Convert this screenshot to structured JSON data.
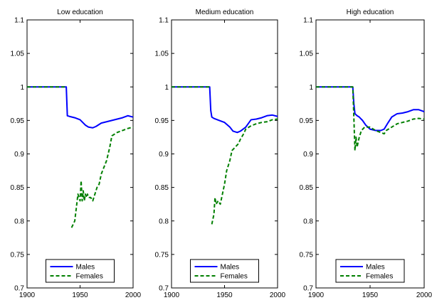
{
  "chart_data": [
    {
      "type": "line",
      "title": "Low education",
      "xlabel": "",
      "ylabel": "",
      "xlim": [
        1900,
        2000
      ],
      "ylim": [
        0.7,
        1.1
      ],
      "xticks": [
        1900,
        1950,
        2000
      ],
      "yticks": [
        0.7,
        0.75,
        0.8,
        0.85,
        0.9,
        0.95,
        1,
        1.05,
        1.1
      ],
      "xtick_labels": [
        "1900",
        "1950",
        "2000"
      ],
      "ytick_labels": [
        "0.7",
        "0.75",
        "0.8",
        "0.85",
        "0.9",
        "0.95",
        "1",
        "1.05",
        "1.1"
      ],
      "grid": false,
      "legend_position": "bottom-center",
      "series": [
        {
          "name": "Males",
          "color": "#0000ff",
          "style": "solid",
          "x": [
            1900,
            1937,
            1938,
            1940,
            1945,
            1950,
            1955,
            1958,
            1962,
            1965,
            1970,
            1975,
            1980,
            1985,
            1990,
            1995,
            2000
          ],
          "y": [
            1,
            1,
            0.957,
            0.956,
            0.954,
            0.951,
            0.943,
            0.94,
            0.939,
            0.941,
            0.946,
            0.948,
            0.95,
            0.952,
            0.954,
            0.957,
            0.955
          ]
        },
        {
          "name": "Females",
          "color": "#007f00",
          "style": "dashed",
          "x": [
            1900,
            1937,
            null,
            1942,
            1945,
            1948,
            1950,
            1951,
            1952,
            1953,
            1954,
            1955,
            1956,
            1957,
            1958,
            1960,
            1962,
            1964,
            1966,
            1968,
            1970,
            1975,
            1978,
            1980,
            1985,
            1990,
            1995,
            2000
          ],
          "y": [
            1,
            1,
            null,
            0.79,
            0.8,
            0.84,
            0.83,
            0.86,
            0.83,
            0.845,
            0.83,
            0.84,
            0.835,
            0.84,
            0.835,
            0.835,
            0.83,
            0.84,
            0.85,
            0.855,
            0.87,
            0.89,
            0.91,
            0.927,
            0.932,
            0.935,
            0.938,
            0.94
          ]
        }
      ]
    },
    {
      "type": "line",
      "title": "Medium education",
      "xlabel": "",
      "ylabel": "",
      "xlim": [
        1900,
        2000
      ],
      "ylim": [
        0.7,
        1.1
      ],
      "xticks": [
        1900,
        1950,
        2000
      ],
      "yticks": [
        0.7,
        0.75,
        0.8,
        0.85,
        0.9,
        0.95,
        1,
        1.05,
        1.1
      ],
      "xtick_labels": [
        "1900",
        "1950",
        "2000"
      ],
      "ytick_labels": [
        "0.7",
        "0.75",
        "0.8",
        "0.85",
        "0.9",
        "0.95",
        "1",
        "1.05",
        "1.1"
      ],
      "grid": false,
      "legend_position": "bottom-center",
      "series": [
        {
          "name": "Males",
          "color": "#0000ff",
          "style": "solid",
          "x": [
            1900,
            1936,
            1937,
            1938,
            1940,
            1945,
            1950,
            1955,
            1958,
            1962,
            1965,
            1970,
            1975,
            1980,
            1985,
            1990,
            1995,
            2000
          ],
          "y": [
            1,
            1,
            0.965,
            0.955,
            0.953,
            0.95,
            0.947,
            0.94,
            0.934,
            0.932,
            0.934,
            0.94,
            0.951,
            0.952,
            0.954,
            0.957,
            0.958,
            0.956
          ]
        },
        {
          "name": "Females",
          "color": "#007f00",
          "style": "dashed",
          "x": [
            1900,
            1936,
            null,
            1938,
            1940,
            1941,
            1942,
            1944,
            1946,
            1948,
            1950,
            1952,
            1955,
            1957,
            1960,
            1963,
            1965,
            1968,
            1970,
            1975,
            1980,
            1985,
            1990,
            1995,
            2000
          ],
          "y": [
            1,
            1,
            null,
            0.795,
            0.81,
            0.835,
            0.825,
            0.83,
            0.825,
            0.84,
            0.855,
            0.875,
            0.89,
            0.905,
            0.91,
            0.915,
            0.922,
            0.93,
            0.937,
            0.942,
            0.945,
            0.947,
            0.948,
            0.951,
            0.952
          ]
        }
      ]
    },
    {
      "type": "line",
      "title": "High education",
      "xlabel": "",
      "ylabel": "",
      "xlim": [
        1900,
        2000
      ],
      "ylim": [
        0.7,
        1.1
      ],
      "xticks": [
        1900,
        1950,
        2000
      ],
      "yticks": [
        0.7,
        0.75,
        0.8,
        0.85,
        0.9,
        0.95,
        1,
        1.05,
        1.1
      ],
      "xtick_labels": [
        "1900",
        "1950",
        "2000"
      ],
      "ytick_labels": [
        "0.7",
        "0.75",
        "0.8",
        "0.85",
        "0.9",
        "0.95",
        "1",
        "1.05",
        "1.1"
      ],
      "grid": false,
      "legend_position": "bottom-center",
      "series": [
        {
          "name": "Males",
          "color": "#0000ff",
          "style": "solid",
          "x": [
            1900,
            1934,
            1935,
            1936,
            1938,
            1940,
            1943,
            1946,
            1950,
            1955,
            1960,
            1963,
            1966,
            1970,
            1975,
            1980,
            1985,
            1990,
            1995,
            2000
          ],
          "y": [
            1,
            1,
            0.975,
            0.96,
            0.957,
            0.955,
            0.95,
            0.943,
            0.937,
            0.935,
            0.935,
            0.937,
            0.945,
            0.955,
            0.96,
            0.961,
            0.963,
            0.966,
            0.966,
            0.963
          ]
        },
        {
          "name": "Females",
          "color": "#007f00",
          "style": "dashed",
          "x": [
            1900,
            1934,
            1935,
            1936,
            1937,
            1938,
            1939,
            1940,
            1942,
            1945,
            1948,
            1950,
            1955,
            1960,
            1963,
            1965,
            1968,
            1970,
            1975,
            1980,
            1985,
            1990,
            1995,
            2000
          ],
          "y": [
            1,
            1,
            0.955,
            0.905,
            0.925,
            0.91,
            0.918,
            0.925,
            0.935,
            0.94,
            0.94,
            0.94,
            0.935,
            0.932,
            0.93,
            0.935,
            0.938,
            0.94,
            0.945,
            0.947,
            0.949,
            0.952,
            0.953,
            0.952
          ]
        }
      ]
    }
  ]
}
